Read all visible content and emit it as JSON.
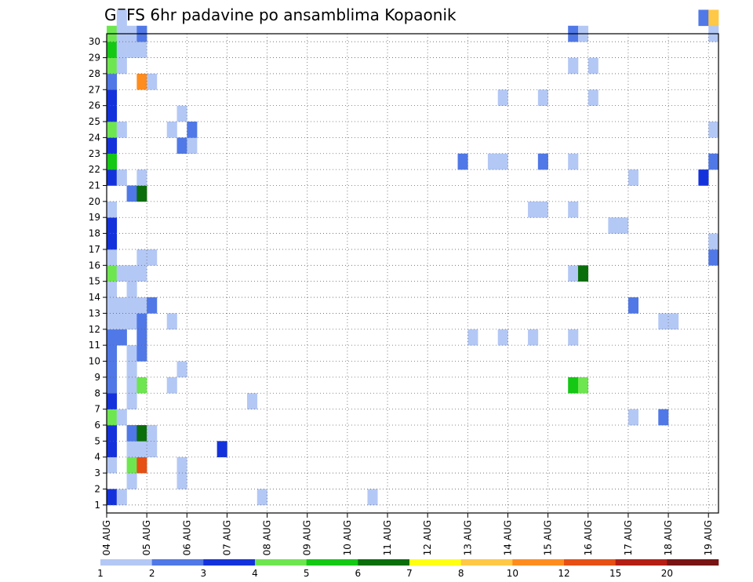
{
  "chart_data": {
    "type": "heatmap",
    "title": "GEFS 6hr padavine po ansamblima Kopaonik",
    "xlabel": "",
    "ylabel": "",
    "x_ticks": [
      "04 AUG",
      "05 AUG",
      "06 AUG",
      "07 AUG",
      "08 AUG",
      "09 AUG",
      "10 AUG",
      "11 AUG",
      "12 AUG",
      "13 AUG",
      "14 AUG",
      "15 AUG",
      "16 AUG",
      "17 AUG",
      "18 AUG",
      "19 AUG"
    ],
    "x_range": [
      0,
      61
    ],
    "y_ticks": [
      "1",
      "2",
      "3",
      "4",
      "5",
      "6",
      "7",
      "8",
      "9",
      "10",
      "11",
      "12",
      "13",
      "14",
      "15",
      "16",
      "17",
      "18",
      "19",
      "20",
      "21",
      "22",
      "23",
      "24",
      "25",
      "26",
      "27",
      "28",
      "29",
      "30"
    ],
    "y_range": [
      0,
      30
    ],
    "grid": true,
    "legend_position": "bottom",
    "colorbar": {
      "labels": [
        "1",
        "2",
        "3",
        "4",
        "5",
        "6",
        "7",
        "8",
        "10",
        "12",
        "15",
        "20"
      ],
      "colors": [
        "#b4c8f5",
        "#5078e6",
        "#1432dc",
        "#6ee650",
        "#14c814",
        "#0a6e0a",
        "#ffff14",
        "#ffc846",
        "#ff8c1e",
        "#e65014",
        "#b41e14",
        "#781414"
      ]
    },
    "cells": [
      [
        0,
        0,
        3
      ],
      [
        1,
        0,
        1
      ],
      [
        15,
        0,
        1
      ],
      [
        26,
        0,
        1
      ],
      [
        2,
        1,
        1
      ],
      [
        7,
        1,
        1
      ],
      [
        0,
        2,
        1
      ],
      [
        2,
        2,
        4
      ],
      [
        3,
        2,
        10
      ],
      [
        7,
        2,
        1
      ],
      [
        0,
        3,
        3
      ],
      [
        2,
        3,
        1
      ],
      [
        3,
        3,
        1
      ],
      [
        4,
        3,
        1
      ],
      [
        11,
        3,
        3
      ],
      [
        0,
        4,
        3
      ],
      [
        2,
        4,
        2
      ],
      [
        3,
        4,
        6
      ],
      [
        4,
        4,
        1
      ],
      [
        0,
        5,
        4
      ],
      [
        1,
        5,
        1
      ],
      [
        52,
        5,
        1
      ],
      [
        55,
        5,
        2
      ],
      [
        0,
        6,
        3
      ],
      [
        2,
        6,
        1
      ],
      [
        14,
        6,
        1
      ],
      [
        0,
        7,
        2
      ],
      [
        2,
        7,
        1
      ],
      [
        3,
        7,
        4
      ],
      [
        6,
        7,
        1
      ],
      [
        46,
        7,
        5
      ],
      [
        47,
        7,
        4
      ],
      [
        0,
        8,
        2
      ],
      [
        2,
        8,
        1
      ],
      [
        7,
        8,
        1
      ],
      [
        0,
        9,
        2
      ],
      [
        2,
        9,
        1
      ],
      [
        3,
        9,
        2
      ],
      [
        0,
        10,
        2
      ],
      [
        1,
        10,
        2
      ],
      [
        3,
        10,
        2
      ],
      [
        36,
        10,
        1
      ],
      [
        39,
        10,
        1
      ],
      [
        42,
        10,
        1
      ],
      [
        46,
        10,
        1
      ],
      [
        0,
        11,
        1
      ],
      [
        1,
        11,
        1
      ],
      [
        2,
        11,
        1
      ],
      [
        3,
        11,
        2
      ],
      [
        6,
        11,
        1
      ],
      [
        55,
        11,
        1
      ],
      [
        56,
        11,
        1
      ],
      [
        0,
        12,
        1
      ],
      [
        1,
        12,
        1
      ],
      [
        2,
        12,
        1
      ],
      [
        3,
        12,
        1
      ],
      [
        4,
        12,
        2
      ],
      [
        52,
        12,
        2
      ],
      [
        0,
        13,
        1
      ],
      [
        2,
        13,
        1
      ],
      [
        0,
        14,
        4
      ],
      [
        1,
        14,
        1
      ],
      [
        2,
        14,
        1
      ],
      [
        3,
        14,
        1
      ],
      [
        46,
        14,
        1
      ],
      [
        47,
        14,
        6
      ],
      [
        0,
        15,
        1
      ],
      [
        3,
        15,
        1
      ],
      [
        4,
        15,
        1
      ],
      [
        60,
        15,
        2
      ],
      [
        0,
        16,
        3
      ],
      [
        60,
        16,
        1
      ],
      [
        0,
        17,
        3
      ],
      [
        50,
        17,
        1
      ],
      [
        51,
        17,
        1
      ],
      [
        0,
        18,
        1
      ],
      [
        42,
        18,
        1
      ],
      [
        43,
        18,
        1
      ],
      [
        46,
        18,
        1
      ],
      [
        2,
        19,
        2
      ],
      [
        3,
        19,
        6
      ],
      [
        0,
        20,
        3
      ],
      [
        1,
        20,
        1
      ],
      [
        3,
        20,
        1
      ],
      [
        52,
        20,
        1
      ],
      [
        59,
        20,
        3
      ],
      [
        0,
        21,
        5
      ],
      [
        35,
        21,
        2
      ],
      [
        38,
        21,
        1
      ],
      [
        39,
        21,
        1
      ],
      [
        43,
        21,
        2
      ],
      [
        46,
        21,
        1
      ],
      [
        60,
        21,
        2
      ],
      [
        0,
        22,
        3
      ],
      [
        7,
        22,
        2
      ],
      [
        8,
        22,
        1
      ],
      [
        0,
        23,
        4
      ],
      [
        1,
        23,
        1
      ],
      [
        6,
        23,
        1
      ],
      [
        8,
        23,
        2
      ],
      [
        60,
        23,
        1
      ],
      [
        0,
        24,
        3
      ],
      [
        7,
        24,
        1
      ],
      [
        0,
        25,
        3
      ],
      [
        39,
        25,
        1
      ],
      [
        43,
        25,
        1
      ],
      [
        48,
        25,
        1
      ],
      [
        0,
        26,
        2
      ],
      [
        3,
        26,
        9
      ],
      [
        4,
        26,
        1
      ],
      [
        0,
        27,
        4
      ],
      [
        1,
        27,
        1
      ],
      [
        46,
        27,
        1
      ],
      [
        48,
        27,
        1
      ],
      [
        0,
        28,
        5
      ],
      [
        1,
        28,
        1
      ],
      [
        2,
        28,
        1
      ],
      [
        3,
        28,
        1
      ],
      [
        0,
        29,
        4
      ],
      [
        1,
        29,
        1
      ],
      [
        2,
        29,
        1
      ],
      [
        3,
        29,
        2
      ],
      [
        46,
        29,
        2
      ],
      [
        47,
        29,
        1
      ],
      [
        60,
        29,
        1
      ],
      [
        1,
        30,
        1
      ],
      [
        59,
        30,
        2
      ],
      [
        60,
        30,
        8
      ]
    ]
  }
}
